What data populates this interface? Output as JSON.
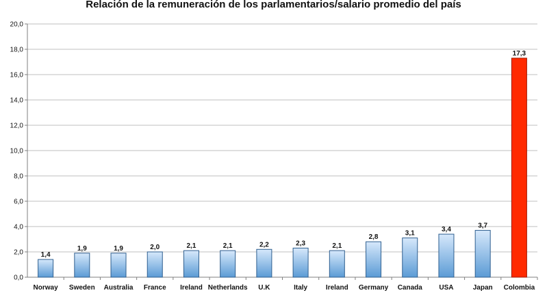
{
  "chart_data": {
    "type": "bar",
    "title": "Relación de la remuneración de los parlamentarios/salario promedio del país",
    "xlabel": "",
    "ylabel": "",
    "categories": [
      "Norway",
      "Sweden",
      "Australia",
      "France",
      "Ireland",
      "Netherlands",
      "U.K",
      "Italy",
      "Ireland",
      "Germany",
      "Canada",
      "USA",
      "Japan",
      "Colombia"
    ],
    "values": [
      1.4,
      1.9,
      1.9,
      2.0,
      2.1,
      2.1,
      2.2,
      2.3,
      2.1,
      2.8,
      3.1,
      3.4,
      3.7,
      17.3
    ],
    "data_labels": [
      "1,4",
      "1,9",
      "1,9",
      "2,0",
      "2,1",
      "2,1",
      "2,2",
      "2,3",
      "2,1",
      "2,8",
      "3,1",
      "3,4",
      "3,7",
      "17,3"
    ],
    "ylim": [
      0,
      20
    ],
    "yticks": [
      0,
      2,
      4,
      6,
      8,
      10,
      12,
      14,
      16,
      18,
      20
    ],
    "ytick_labels": [
      "0,0",
      "2,0",
      "4,0",
      "6,0",
      "8,0",
      "10,0",
      "12,0",
      "14,0",
      "16,0",
      "18,0",
      "20,0"
    ],
    "grid": true,
    "legend": "none",
    "colors": {
      "default_bar_light": "#d6e8fb",
      "default_bar_dark": "#5b9bd5",
      "default_bar_stroke": "#2f5f8f",
      "highlight_bar": "#ff2a00",
      "highlight_bar_stroke": "#a01800",
      "highlight_category": "Colombia",
      "grid": "#bfbfbf",
      "axis": "#7f7f7f"
    }
  }
}
